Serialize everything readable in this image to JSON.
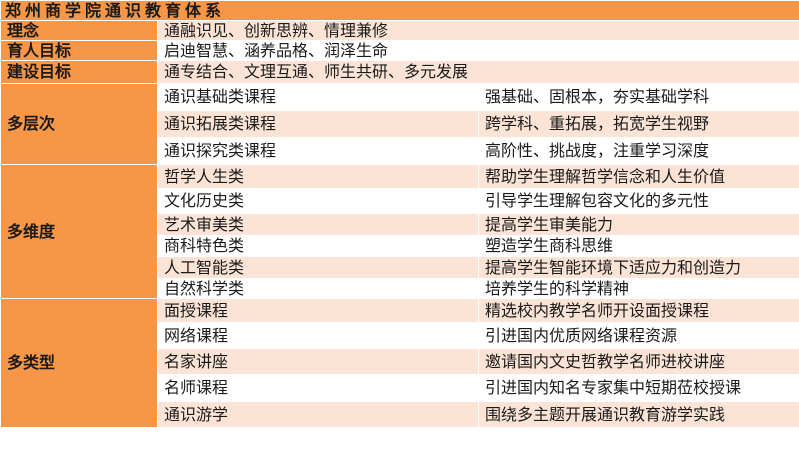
{
  "colors": {
    "header": "#F79646",
    "row_alt": "#FBE4D5",
    "row": "#FFFFFF"
  },
  "title": "郑州商学院通识教育体系",
  "simple_rows": [
    {
      "label": "理念",
      "value": "通融识见、创新思辨、情理兼修"
    },
    {
      "label": "育人目标",
      "value": "启迪智慧、涵养品格、润泽生命"
    },
    {
      "label": "建设目标",
      "value": "通专结合、文理互通、师生共研、多元发展"
    }
  ],
  "groups": [
    {
      "label": "多层次",
      "items": [
        {
          "name": "通识基础类课程",
          "desc": "强基础、固根本，夯实基础学科"
        },
        {
          "name": "通识拓展类课程",
          "desc": "跨学科、重拓展，拓宽学生视野"
        },
        {
          "name": "通识探究类课程",
          "desc": "高阶性、挑战度，注重学习深度"
        }
      ]
    },
    {
      "label": "多维度",
      "items": [
        {
          "name": "哲学人生类",
          "desc": "帮助学生理解哲学信念和人生价值"
        },
        {
          "name": "文化历史类",
          "desc": "引导学生理解包容文化的多元性"
        },
        {
          "name": "艺术审美类",
          "desc": "提高学生审美能力"
        },
        {
          "name": "商科特色类",
          "desc": "塑造学生商科思维"
        },
        {
          "name": "人工智能类",
          "desc": "提高学生智能环境下适应力和创造力"
        },
        {
          "name": "自然科学类",
          "desc": "培养学生的科学精神"
        }
      ]
    },
    {
      "label": "多类型",
      "items": [
        {
          "name": "面授课程",
          "desc": "精选校内教学名师开设面授课程"
        },
        {
          "name": "网络课程",
          "desc": "引进国内优质网络课程资源"
        },
        {
          "name": "名家讲座",
          "desc": "邀请国内文史哲教学名师进校讲座"
        },
        {
          "name": "名师课程",
          "desc": "引进国内知名专家集中短期莅校授课"
        },
        {
          "name": "通识游学",
          "desc": "围绕多主题开展通识教育游学实践"
        }
      ]
    }
  ]
}
